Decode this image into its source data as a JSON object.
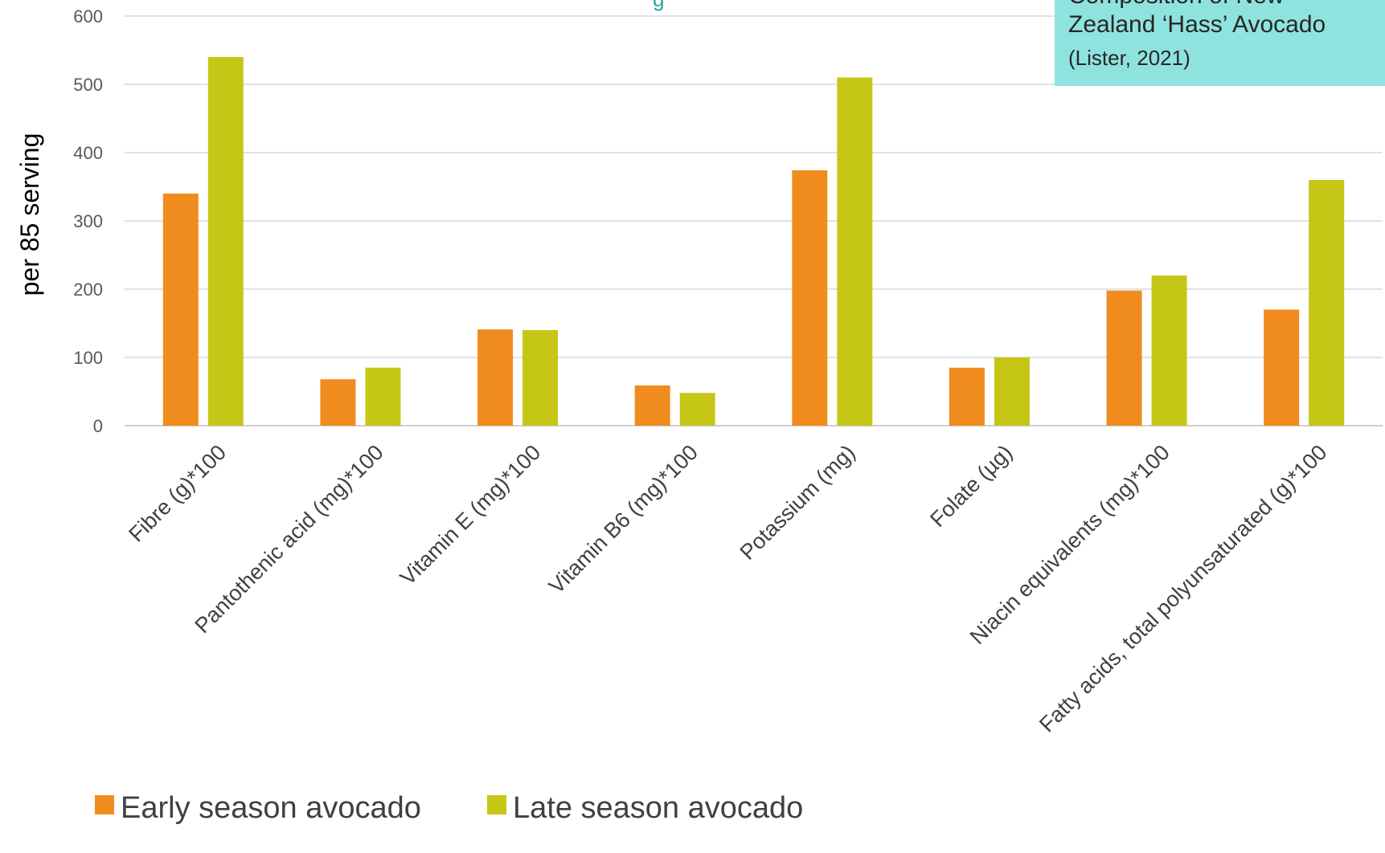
{
  "chart_data": {
    "type": "bar",
    "title_fragment": "g",
    "ylabel": "per 85 serving",
    "xlabel": "",
    "ylim": [
      0,
      600
    ],
    "yticks": [
      0,
      100,
      200,
      300,
      400,
      500,
      600
    ],
    "grid": true,
    "legend_position": "bottom-left",
    "categories": [
      "Fibre (g)*100",
      "Pantothenic acid (mg)*100",
      "Vitamin E (mg)*100",
      "Vitamin B6 (mg)*100",
      "Potassium (mg)",
      "Folate (µg)",
      "Niacin equivalents (mg)*100",
      "Fatty acids, total polyunsaturated (g)*100"
    ],
    "series": [
      {
        "name": "Early season avocado",
        "color": "#f08c1e",
        "values": [
          340,
          68,
          141,
          59,
          374,
          85,
          198,
          170
        ]
      },
      {
        "name": "Late season avocado",
        "color": "#c6c617",
        "values": [
          540,
          85,
          140,
          48,
          510,
          100,
          220,
          360
        ]
      }
    ]
  },
  "source_box": {
    "line_top": "Composition of New",
    "line_main": "Zealand ‘Hass’ Avocado",
    "line_cite": "(Lister, 2021)"
  }
}
